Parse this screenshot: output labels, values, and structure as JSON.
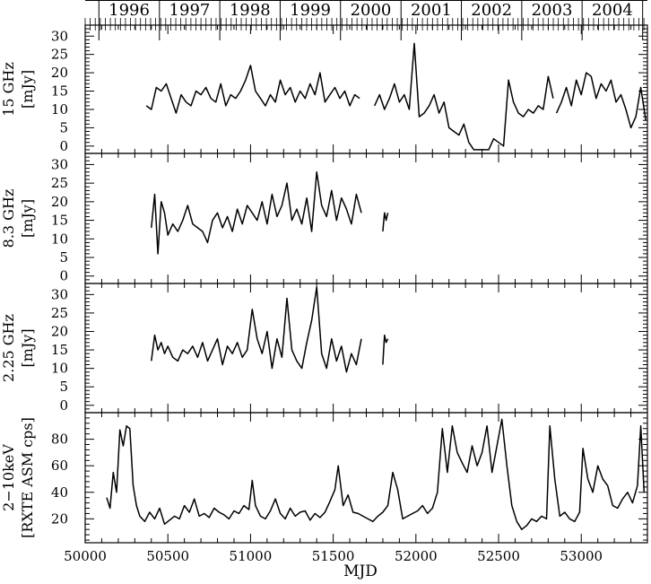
{
  "chart_data": {
    "type": "line",
    "title": "",
    "xlabel": "MJD",
    "xlim": [
      50000,
      53400
    ],
    "x_ticks": [
      "50000",
      "50500",
      "51000",
      "51500",
      "52000",
      "52500",
      "53000"
    ],
    "top_axis": {
      "years": [
        "1996",
        "1997",
        "1998",
        "1999",
        "2000",
        "2001",
        "2002",
        "2003",
        "2004"
      ],
      "year_starts_mjd": [
        50083,
        50449,
        50814,
        51179,
        51544,
        51910,
        52275,
        52640,
        53005
      ],
      "last_boundary_mjd": 53371
    },
    "panels": [
      {
        "ylabel_line1": "15 GHz",
        "ylabel_line2": "[mJy]",
        "ylim": [
          -2,
          33
        ],
        "yticks": [
          "0",
          "5",
          "10",
          "15",
          "20",
          "25",
          "30"
        ],
        "segments": [
          {
            "x": [
              50370,
              50400,
              50430,
              50460,
              50490,
              50520,
              50550,
              50580,
              50610,
              50640,
              50670,
              50700,
              50730,
              50760,
              50790,
              50820,
              50850,
              50880,
              50910,
              50940,
              50970,
              51000,
              51030,
              51060,
              51090,
              51120,
              51150,
              51180,
              51210,
              51240,
              51270,
              51300,
              51330,
              51360,
              51390,
              51420,
              51450,
              51480,
              51510,
              51540,
              51570,
              51600,
              51630,
              51660
            ],
            "y": [
              11,
              10,
              16,
              15,
              17,
              13,
              9,
              14,
              12,
              11,
              15,
              14,
              16,
              13,
              12,
              17,
              11,
              14,
              13,
              15,
              18,
              22,
              15,
              13,
              11,
              14,
              12,
              18,
              14,
              16,
              12,
              15,
              13,
              17,
              14,
              20,
              12,
              14,
              16,
              13,
              15,
              11,
              14,
              13
            ]
          },
          {
            "x": [
              51750,
              51780,
              51810,
              51840,
              51870,
              51900,
              51930,
              51960,
              51990,
              52020,
              52050,
              52080,
              52110,
              52140,
              52170,
              52200,
              52230,
              52260,
              52290,
              52320,
              52350,
              52380,
              52410,
              52440,
              52470,
              52500,
              52530,
              52560,
              52590,
              52620,
              52650,
              52680,
              52710,
              52740,
              52770,
              52800,
              52830
            ],
            "y": [
              11,
              14,
              10,
              13,
              17,
              12,
              14,
              10,
              28,
              8,
              9,
              11,
              14,
              9,
              12,
              5,
              4,
              3,
              6,
              1,
              -1,
              -1,
              -1,
              -1,
              2,
              1,
              0,
              18,
              12,
              9,
              8,
              10,
              9,
              11,
              10,
              19,
              13
            ]
          },
          {
            "x": [
              52850,
              52880,
              52910,
              52940,
              52970,
              53000,
              53030,
              53060,
              53090,
              53120,
              53150,
              53180,
              53210,
              53240,
              53270,
              53300,
              53330,
              53360,
              53390
            ],
            "y": [
              9,
              12,
              16,
              11,
              18,
              14,
              20,
              19,
              13,
              17,
              15,
              18,
              12,
              14,
              10,
              5,
              8,
              16,
              7
            ]
          }
        ]
      },
      {
        "ylabel_line1": "8.3 GHz",
        "ylabel_line2": "[mJy]",
        "ylim": [
          -2,
          33
        ],
        "yticks": [
          "0",
          "5",
          "10",
          "15",
          "20",
          "25",
          "30"
        ],
        "segments": [
          {
            "x": [
              50400,
              50420,
              50440,
              50460,
              50480,
              50500,
              50530,
              50560,
              50590,
              50620,
              50650,
              50680,
              50710,
              50740,
              50770,
              50800,
              50830,
              50860,
              50890,
              50920,
              50950,
              50980,
              51010,
              51040,
              51070,
              51100,
              51130,
              51160,
              51190,
              51220,
              51250,
              51280,
              51310,
              51340,
              51370,
              51400,
              51430,
              51460,
              51490,
              51520,
              51550,
              51580,
              51610,
              51640,
              51670
            ],
            "y": [
              13,
              22,
              6,
              20,
              17,
              11,
              14,
              12,
              15,
              19,
              14,
              13,
              12,
              9,
              15,
              17,
              13,
              16,
              12,
              18,
              14,
              19,
              17,
              15,
              20,
              14,
              22,
              16,
              19,
              25,
              15,
              18,
              14,
              21,
              12,
              28,
              19,
              16,
              23,
              15,
              21,
              18,
              14,
              22,
              17
            ]
          },
          {
            "x": [
              51800,
              51810,
              51820,
              51830
            ],
            "y": [
              12,
              17,
              15,
              17
            ]
          }
        ]
      },
      {
        "ylabel_line1": "2.25 GHz",
        "ylabel_line2": "[mJy]",
        "ylim": [
          -2,
          33
        ],
        "yticks": [
          "0",
          "5",
          "10",
          "15",
          "20",
          "25",
          "30"
        ],
        "segments": [
          {
            "x": [
              50400,
              50420,
              50440,
              50460,
              50480,
              50500,
              50530,
              50560,
              50590,
              50620,
              50650,
              50680,
              50710,
              50740,
              50770,
              50800,
              50830,
              50860,
              50890,
              50920,
              50950,
              50980,
              51010,
              51040,
              51070,
              51100,
              51130,
              51160,
              51190,
              51220,
              51250,
              51280,
              51310,
              51340,
              51370,
              51400,
              51430,
              51460,
              51490,
              51520,
              51550,
              51580,
              51610,
              51640,
              51670
            ],
            "y": [
              12,
              19,
              15,
              17,
              14,
              16,
              13,
              12,
              15,
              14,
              16,
              13,
              17,
              12,
              15,
              18,
              11,
              16,
              14,
              17,
              13,
              15,
              26,
              18,
              14,
              20,
              10,
              18,
              13,
              29,
              15,
              12,
              10,
              17,
              23,
              32,
              14,
              10,
              18,
              12,
              16,
              9,
              14,
              11,
              18
            ]
          },
          {
            "x": [
              51800,
              51810,
              51820,
              51830
            ],
            "y": [
              11,
              19,
              17,
              18
            ]
          }
        ]
      },
      {
        "ylabel_line1": "2−10keV",
        "ylabel_line2": "[RXTE ASM cps]",
        "ylim": [
          2,
          100
        ],
        "yticks": [
          "20",
          "40",
          "60",
          "80"
        ],
        "segments": [
          {
            "x": [
              50130,
              50150,
              50170,
              50190,
              50210,
              50230,
              50250,
              50270,
              50290,
              50310,
              50330,
              50360,
              50390,
              50420,
              50450,
              50480,
              50510,
              50540,
              50570,
              50600,
              50630,
              50660,
              50690,
              50720,
              50750,
              50780,
              50810,
              50840,
              50870,
              50900,
              50930,
              50960,
              50990,
              51010,
              51030,
              51060,
              51090,
              51120,
              51150,
              51180,
              51210,
              51240,
              51270,
              51300,
              51330,
              51360,
              51390,
              51420,
              51450,
              51480,
              51510,
              51530,
              51560,
              51590,
              51620,
              51650,
              51680,
              51710,
              51740,
              51770,
              51800,
              51830,
              51860,
              51890,
              51920,
              51950,
              51980,
              52010,
              52040,
              52070,
              52100,
              52130,
              52160,
              52190,
              52220,
              52250,
              52280,
              52310,
              52340,
              52370,
              52400,
              52430,
              52460,
              52490,
              52520,
              52550,
              52580,
              52610,
              52640,
              52670,
              52700,
              52730,
              52760,
              52790,
              52810,
              52840,
              52870,
              52900,
              52930,
              52960,
              52990,
              53010,
              53040,
              53070,
              53100,
              53130,
              53160,
              53190,
              53220,
              53250,
              53280,
              53310,
              53340,
              53360,
              53380
            ],
            "y": [
              36,
              28,
              55,
              40,
              87,
              75,
              90,
              88,
              45,
              30,
              22,
              18,
              25,
              20,
              28,
              16,
              19,
              22,
              20,
              30,
              25,
              35,
              22,
              24,
              21,
              28,
              25,
              23,
              20,
              26,
              24,
              30,
              27,
              49,
              30,
              22,
              20,
              26,
              35,
              24,
              20,
              28,
              22,
              25,
              26,
              19,
              24,
              21,
              25,
              33,
              42,
              60,
              30,
              38,
              25,
              24,
              22,
              20,
              18,
              22,
              25,
              30,
              55,
              42,
              20,
              22,
              24,
              26,
              30,
              24,
              28,
              40,
              88,
              55,
              90,
              70,
              62,
              55,
              75,
              60,
              70,
              90,
              55,
              75,
              95,
              60,
              30,
              18,
              12,
              15,
              20,
              18,
              22,
              20,
              90,
              50,
              22,
              25,
              20,
              18,
              25,
              73,
              50,
              40,
              60,
              50,
              45,
              30,
              28,
              35,
              40,
              32,
              45,
              90,
              40
            ]
          }
        ]
      }
    ]
  }
}
